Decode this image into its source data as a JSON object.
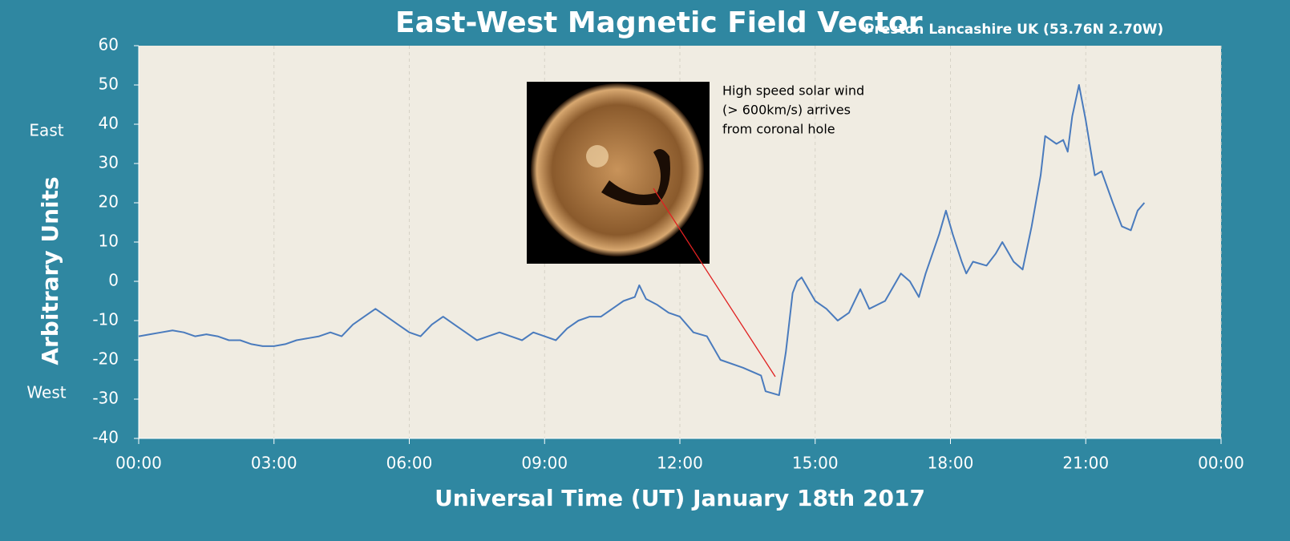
{
  "chart_data": {
    "type": "line",
    "title": "East-West Magnetic Field Vector",
    "subtitle": "Preston Lancashire UK (53.76N 2.70W)",
    "x_label": "Universal Time (UT) January 18th 2017",
    "y_label": "Arbitrary Units",
    "y_side_labels": [
      "East",
      "West"
    ],
    "annotation": [
      "High speed solar wind",
      "(> 600km/s) arrives",
      "from coronal hole"
    ],
    "xlim": [
      0,
      24
    ],
    "xticks": [
      {
        "value": 0,
        "label": "00:00"
      },
      {
        "value": 3,
        "label": "03:00"
      },
      {
        "value": 6,
        "label": "06:00"
      },
      {
        "value": 9,
        "label": "09:00"
      },
      {
        "value": 12,
        "label": "12:00"
      },
      {
        "value": 15,
        "label": "15:00"
      },
      {
        "value": 18,
        "label": "18:00"
      },
      {
        "value": 21,
        "label": "21:00"
      },
      {
        "value": 24,
        "label": "00:00"
      }
    ],
    "ylim": [
      -40,
      60
    ],
    "yticks": [
      -40,
      -30,
      -20,
      -10,
      0,
      10,
      20,
      30,
      40,
      50,
      60
    ],
    "grid": true,
    "series": [
      {
        "color": "#4a7bbd",
        "x": [
          0,
          0.25,
          0.5,
          0.75,
          1,
          1.25,
          1.5,
          1.75,
          2,
          2.25,
          2.5,
          2.75,
          3,
          3.25,
          3.5,
          3.75,
          4,
          4.25,
          4.5,
          4.75,
          5,
          5.25,
          5.5,
          5.75,
          6,
          6.25,
          6.5,
          6.75,
          7,
          7.25,
          7.5,
          7.75,
          8,
          8.25,
          8.5,
          8.75,
          9,
          9.25,
          9.5,
          9.75,
          10,
          10.25,
          10.5,
          10.75,
          11,
          11.1,
          11.25,
          11.5,
          11.75,
          12,
          12.3,
          12.6,
          12.9,
          13.4,
          13.8,
          13.9,
          14.2,
          14.35,
          14.5,
          14.6,
          14.7,
          15,
          15.25,
          15.5,
          15.75,
          16,
          16.2,
          16.55,
          16.9,
          17.1,
          17.3,
          17.45,
          17.75,
          17.9,
          18.05,
          18.25,
          18.35,
          18.5,
          18.8,
          19,
          19.15,
          19.4,
          19.6,
          19.8,
          20,
          20.1,
          20.35,
          20.5,
          20.6,
          20.7,
          20.85,
          21,
          21.2,
          21.35,
          21.6,
          21.8,
          22,
          22.15,
          22.3
        ],
        "values": [
          -14,
          -13.5,
          -13,
          -12.5,
          -13,
          -14,
          -13.5,
          -14,
          -15,
          -15,
          -16,
          -16.5,
          -16.5,
          -16,
          -15,
          -14.5,
          -14,
          -13,
          -14,
          -11,
          -9,
          -7,
          -9,
          -11,
          -13,
          -14,
          -11,
          -9,
          -11,
          -13,
          -15,
          -14,
          -13,
          -14,
          -15,
          -13,
          -14,
          -15,
          -12,
          -10,
          -9,
          -9,
          -7,
          -5,
          -4,
          -1,
          -4.5,
          -6,
          -8,
          -9,
          -13,
          -14,
          -20,
          -22,
          -24,
          -28,
          -29,
          -18,
          -3,
          0,
          1,
          -5,
          -7,
          -10,
          -8,
          -2,
          -7,
          -5,
          2,
          0,
          -4,
          2,
          12,
          18,
          12,
          5,
          2,
          5,
          4,
          7,
          10,
          5,
          3,
          14,
          27,
          37,
          35,
          36,
          33,
          42,
          50,
          41,
          27,
          28,
          20,
          14,
          13,
          18,
          20
        ]
      }
    ]
  }
}
